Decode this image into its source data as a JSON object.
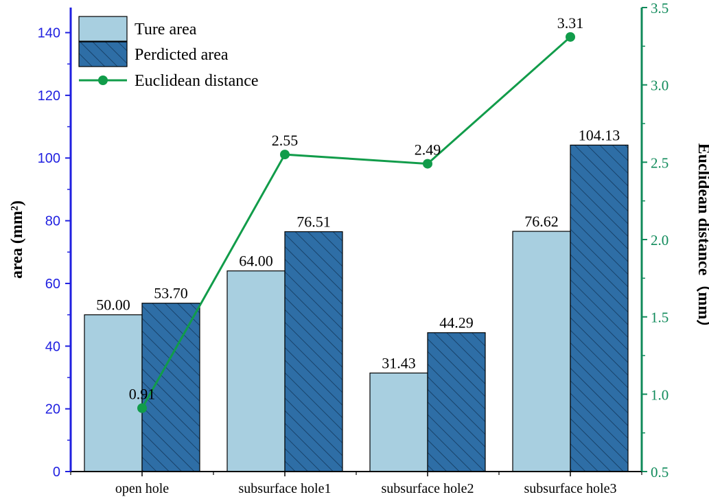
{
  "chart_data": {
    "type": "bar",
    "categories": [
      "open hole",
      "subsurface hole1",
      "subsurface hole2",
      "subsurface hole3"
    ],
    "series": [
      {
        "name": "Ture area",
        "kind": "bar",
        "axis": "left",
        "values": [
          50.0,
          64.0,
          31.43,
          76.62
        ],
        "labels": [
          "50.00",
          "64.00",
          "31.43",
          "76.62"
        ],
        "color": "#a8cfe0",
        "pattern": "solid"
      },
      {
        "name": "Perdicted area",
        "kind": "bar",
        "axis": "left",
        "values": [
          53.7,
          76.51,
          44.29,
          104.13
        ],
        "labels": [
          "53.70",
          "76.51",
          "44.29",
          "104.13"
        ],
        "color": "#2e6ea6",
        "pattern": "hatched"
      },
      {
        "name": "Euclidean distance",
        "kind": "line",
        "axis": "right",
        "values": [
          0.91,
          2.55,
          2.49,
          3.31
        ],
        "labels": [
          "0.91",
          "2.55",
          "2.49",
          "3.31"
        ],
        "color": "#119c4a"
      }
    ],
    "ylabel": "area (mm²)",
    "ylabel_right": "Euclidean distance（mm）",
    "ylim": [
      0,
      148
    ],
    "yticks": [
      0,
      20,
      40,
      60,
      80,
      100,
      120,
      140
    ],
    "ylim_right": [
      0.5,
      3.5
    ],
    "yticks_right": [
      "0.5",
      "1.0",
      "1.5",
      "2.0",
      "2.5",
      "3.0",
      "3.5"
    ],
    "left_axis_color": "#1f1fe0",
    "right_axis_color": "#0f8a5a",
    "grid": false,
    "legend": "top-left"
  }
}
